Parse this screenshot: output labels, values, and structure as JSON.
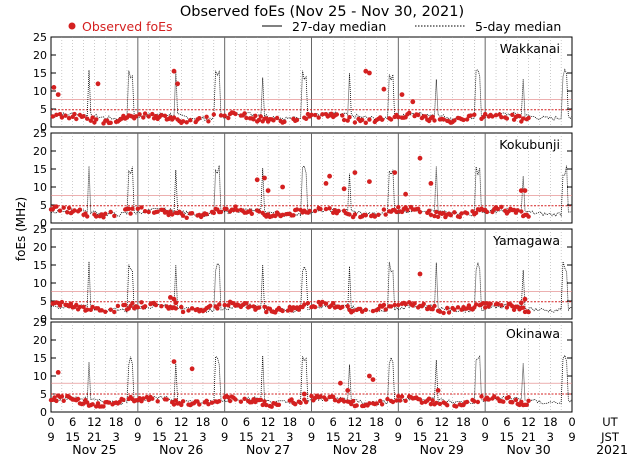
{
  "chart_data": {
    "type": "scatter",
    "title": "Observed foEs (Nov 25 - Nov 30, 2021)",
    "ylabel": "foEs (MHz)",
    "legend": {
      "observed": "Observed foEs",
      "median27": "27-day median",
      "median5": "5-day median",
      "placement": "top"
    },
    "colors": {
      "observed": "#d42020",
      "median27": "#d42020",
      "median5": "#000000",
      "grid": "#999999"
    },
    "ylim": [
      0,
      25
    ],
    "yticks": [
      0,
      5,
      10,
      15,
      20,
      25
    ],
    "xlim": [
      0,
      144
    ],
    "ut_labels": [
      "0",
      "6",
      "12",
      "18",
      "0",
      "6",
      "12",
      "18",
      "0",
      "6",
      "12",
      "18",
      "0",
      "6",
      "12",
      "18",
      "0",
      "6",
      "12",
      "18",
      "0",
      "6",
      "12",
      "18",
      "0"
    ],
    "jst_labels": [
      "9",
      "15",
      "21",
      "3",
      "9",
      "15",
      "21",
      "3",
      "9",
      "15",
      "21",
      "3",
      "9",
      "15",
      "21",
      "3",
      "9",
      "15",
      "21",
      "3",
      "9",
      "15",
      "21",
      "3",
      "9"
    ],
    "ut_axis_label": "UT",
    "jst_axis_label": "JST",
    "days": [
      "Nov 25",
      "Nov 26",
      "Nov 27",
      "Nov 28",
      "Nov 29",
      "Nov 30"
    ],
    "year": "2021",
    "stations": [
      {
        "name": "Wakkanai",
        "median27": 4.8,
        "median5": 3.0,
        "obs_hours": [
          0,
          132
        ],
        "level": 2.5,
        "spikes": [
          [
            0.8,
            11
          ],
          [
            2,
            9
          ],
          [
            13,
            12
          ],
          [
            34,
            15.5
          ],
          [
            35,
            12
          ],
          [
            87,
            15.5
          ],
          [
            88,
            15
          ],
          [
            92,
            10.5
          ],
          [
            97,
            9
          ],
          [
            100,
            7
          ]
        ]
      },
      {
        "name": "Kokubunji",
        "median27": 4.8,
        "median5": 3.0,
        "obs_hours": [
          0,
          132
        ],
        "level": 3.0,
        "spikes": [
          [
            57,
            12
          ],
          [
            59,
            12.5
          ],
          [
            60,
            9
          ],
          [
            64,
            10
          ],
          [
            76,
            11
          ],
          [
            77,
            13
          ],
          [
            81,
            9.5
          ],
          [
            84,
            14
          ],
          [
            88,
            11.5
          ],
          [
            95,
            14
          ],
          [
            98,
            8
          ],
          [
            102,
            18
          ],
          [
            105,
            11
          ],
          [
            130,
            9
          ],
          [
            131,
            9
          ]
        ]
      },
      {
        "name": "Yamagawa",
        "median27": 4.8,
        "median5": 3.0,
        "obs_hours": [
          0,
          132
        ],
        "level": 3.2,
        "spikes": [
          [
            33,
            6
          ],
          [
            34,
            5.5
          ],
          [
            34.5,
            4.5
          ],
          [
            102,
            12.5
          ],
          [
            130,
            4.5
          ],
          [
            131,
            5.5
          ]
        ]
      },
      {
        "name": "Okinawa",
        "median27": 5.0,
        "median5": 3.2,
        "obs_hours": [
          0,
          132
        ],
        "level": 3.0,
        "spikes": [
          [
            2,
            11
          ],
          [
            34,
            14
          ],
          [
            39,
            12
          ],
          [
            70,
            5
          ],
          [
            80,
            8
          ],
          [
            82,
            6
          ],
          [
            88,
            10
          ],
          [
            89,
            9
          ],
          [
            107,
            6
          ]
        ]
      }
    ]
  }
}
